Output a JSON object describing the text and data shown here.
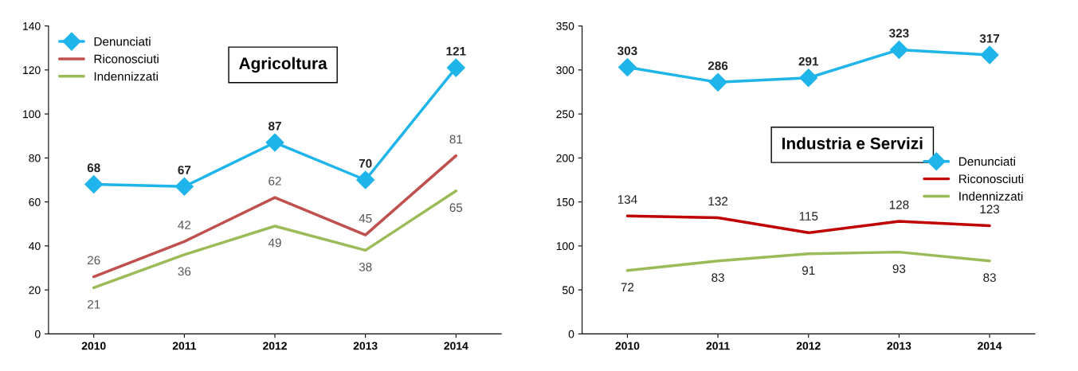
{
  "chart_data": [
    {
      "type": "line",
      "annotations": [
        "Agricoltura"
      ],
      "categories": [
        "2010",
        "2011",
        "2012",
        "2013",
        "2014"
      ],
      "ylim": [
        0,
        140
      ],
      "yticks": [
        0,
        20,
        40,
        60,
        80,
        100,
        120,
        140
      ],
      "grid": false,
      "legend": "top left",
      "data_labels": true,
      "series": [
        {
          "name": "Denunciati",
          "color": "#1fb5ea",
          "marker": "diamond",
          "values": [
            68,
            67,
            87,
            70,
            121
          ]
        },
        {
          "name": "Riconosciuti",
          "color": "#c0504d",
          "marker": "none",
          "values": [
            26,
            42,
            62,
            45,
            81
          ]
        },
        {
          "name": "Indennizzati",
          "color": "#9bbb59",
          "marker": "none",
          "values": [
            21,
            36,
            49,
            38,
            65
          ]
        }
      ]
    },
    {
      "type": "line",
      "annotations": [
        "Industria e Servizi"
      ],
      "categories": [
        "2010",
        "2011",
        "2012",
        "2013",
        "2014"
      ],
      "ylim": [
        0,
        350
      ],
      "yticks": [
        0,
        50,
        100,
        150,
        200,
        250,
        300,
        350
      ],
      "grid": false,
      "legend": "right",
      "data_labels": true,
      "series": [
        {
          "name": "Denunciati",
          "color": "#1fb5ea",
          "marker": "diamond",
          "values": [
            303,
            286,
            291,
            323,
            317
          ]
        },
        {
          "name": "Riconosciuti",
          "color": "#c00000",
          "marker": "none",
          "values": [
            134,
            132,
            115,
            128,
            123
          ]
        },
        {
          "name": "Indennizzati",
          "color": "#9bbb59",
          "marker": "none",
          "values": [
            72,
            83,
            91,
            93,
            83
          ]
        }
      ]
    }
  ]
}
